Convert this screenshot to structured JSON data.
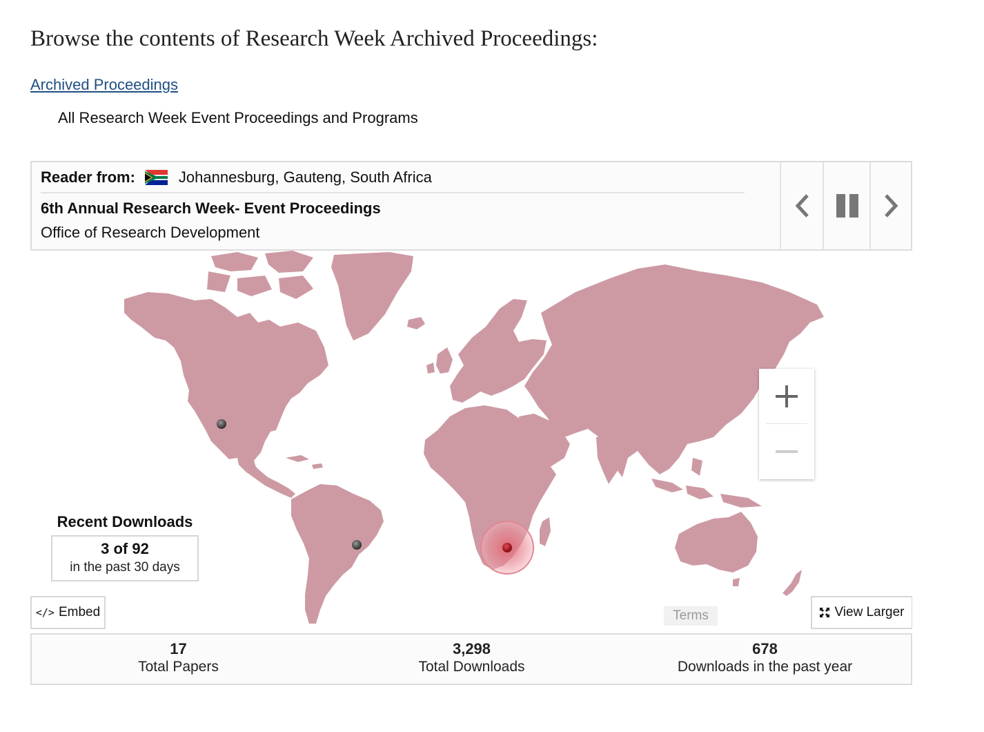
{
  "heading": "Browse the contents of Research Week Archived Proceedings:",
  "collection": {
    "link_label": "Archived Proceedings",
    "description": "All Research Week Event Proceedings and Programs"
  },
  "reader": {
    "label": "Reader from:",
    "flag_icon": "south-africa-flag-icon",
    "location": "Johannesburg, Gauteng, South Africa",
    "paper_title": "6th Annual Research Week- Event Proceedings",
    "paper_source": "Office of Research Development",
    "controls": [
      "chevron-left-icon",
      "pause-icon",
      "chevron-right-icon"
    ]
  },
  "map": {
    "land_color": "#cd9aa3",
    "active_marker_color": "#b5121b",
    "marker_color": "#555555",
    "zoom_in_icon": "plus-icon",
    "zoom_out_icon": "minus-icon",
    "terms_label": "Terms",
    "embed_label": "Embed",
    "embed_icon": "code-icon",
    "view_larger_label": "View Larger",
    "view_larger_icon": "expand-icon"
  },
  "recent": {
    "title": "Recent Downloads",
    "count": "3 of 92",
    "period": "in the past 30 days"
  },
  "stats": [
    {
      "value": "17",
      "label": "Total Papers"
    },
    {
      "value": "3,298",
      "label": "Total Downloads"
    },
    {
      "value": "678",
      "label": "Downloads in the past year"
    }
  ]
}
